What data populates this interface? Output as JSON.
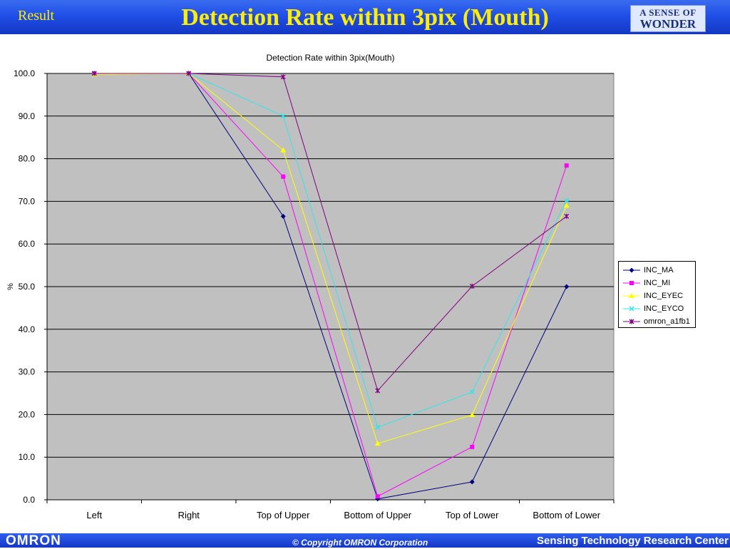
{
  "header": {
    "section_label": "Result",
    "title": "Detection Rate within 3pix (Mouth)",
    "logo_line1": "A SENSE OF",
    "logo_line2": "WONDER",
    "colors": {
      "bar": "#1f4fe6",
      "title": "#ffee00"
    }
  },
  "footer": {
    "brand": "OMRON",
    "copyright": "© Copyright OMRON Corporation",
    "center": "Sensing Technology Research Center"
  },
  "chart_data": {
    "type": "line",
    "title": "Detection Rate within 3pix(Mouth)",
    "xlabel": "",
    "ylabel": "%",
    "categories": [
      "Left",
      "Right",
      "Top of Upper",
      "Bottom of Upper",
      "Top of Lower",
      "Bottom of Lower"
    ],
    "ylim": [
      0,
      100
    ],
    "yticks": [
      "0.0",
      "10.0",
      "20.0",
      "30.0",
      "40.0",
      "50.0",
      "60.0",
      "70.0",
      "80.0",
      "90.0",
      "100.0"
    ],
    "grid": true,
    "plot_background": "#c0c0c0",
    "legend_position": "right",
    "series": [
      {
        "name": "INC_MA",
        "color": "#000080",
        "marker": "diamond",
        "values": [
          100.0,
          100.0,
          66.5,
          0.2,
          4.2,
          50.0
        ]
      },
      {
        "name": "INC_MI",
        "color": "#ff00ff",
        "marker": "square",
        "values": [
          100.0,
          100.0,
          75.8,
          0.8,
          12.4,
          78.4
        ]
      },
      {
        "name": "INC_EYEC",
        "color": "#ffff00",
        "marker": "triangle",
        "values": [
          99.8,
          100.0,
          82.0,
          13.2,
          19.9,
          69.0
        ]
      },
      {
        "name": "INC_EYCO",
        "color": "#33e6e6",
        "marker": "x",
        "values": [
          100.0,
          100.0,
          90.0,
          17.0,
          25.3,
          70.2
        ]
      },
      {
        "name": "omron_a1fb1",
        "color": "#800080",
        "marker": "star",
        "values": [
          100.0,
          100.0,
          99.2,
          25.6,
          50.1,
          66.5
        ]
      }
    ]
  }
}
